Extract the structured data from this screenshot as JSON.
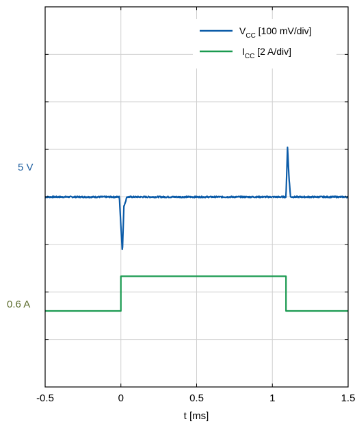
{
  "chart_data": {
    "type": "line",
    "xlabel": "t [ms]",
    "xlim": [
      -0.5,
      1.5
    ],
    "xticks": [
      "-0.5",
      "0",
      "0.5",
      "1",
      "1.5"
    ],
    "x_tick_values": [
      -0.5,
      0,
      0.5,
      1,
      1.5
    ],
    "y_divisions": 8,
    "grid": true,
    "legend_position": "top-right",
    "y_reference_labels": [
      {
        "text": "5 V",
        "series": "vcc",
        "color": "#1f5fa0"
      },
      {
        "text": "0.6 A",
        "series": "icc",
        "color": "#5a6a2a"
      }
    ],
    "series": [
      {
        "id": "vcc",
        "name_main": "V",
        "name_sub": "CC",
        "name_rest": " [100 mV/div]",
        "color": "#0b5ba8",
        "baseline_div": 4,
        "noise_div": 0.03,
        "x": [
          -0.5,
          -0.01,
          0.0,
          0.01,
          0.02,
          0.04,
          1.09,
          1.1,
          1.11,
          1.12,
          1.5
        ],
        "y_div": [
          0,
          0,
          -0.6,
          -1.15,
          -0.2,
          0,
          0,
          1.05,
          0.4,
          0,
          0
        ]
      },
      {
        "id": "icc",
        "name_main": "I",
        "name_sub": "CC",
        "name_rest": " [2 A/div]",
        "color": "#1a9a50",
        "baseline_div": 1.6,
        "x": [
          -0.5,
          0.0,
          0.0,
          1.09,
          1.09,
          1.5
        ],
        "y_div": [
          0,
          0,
          0.73,
          0.73,
          0,
          0
        ]
      }
    ]
  }
}
